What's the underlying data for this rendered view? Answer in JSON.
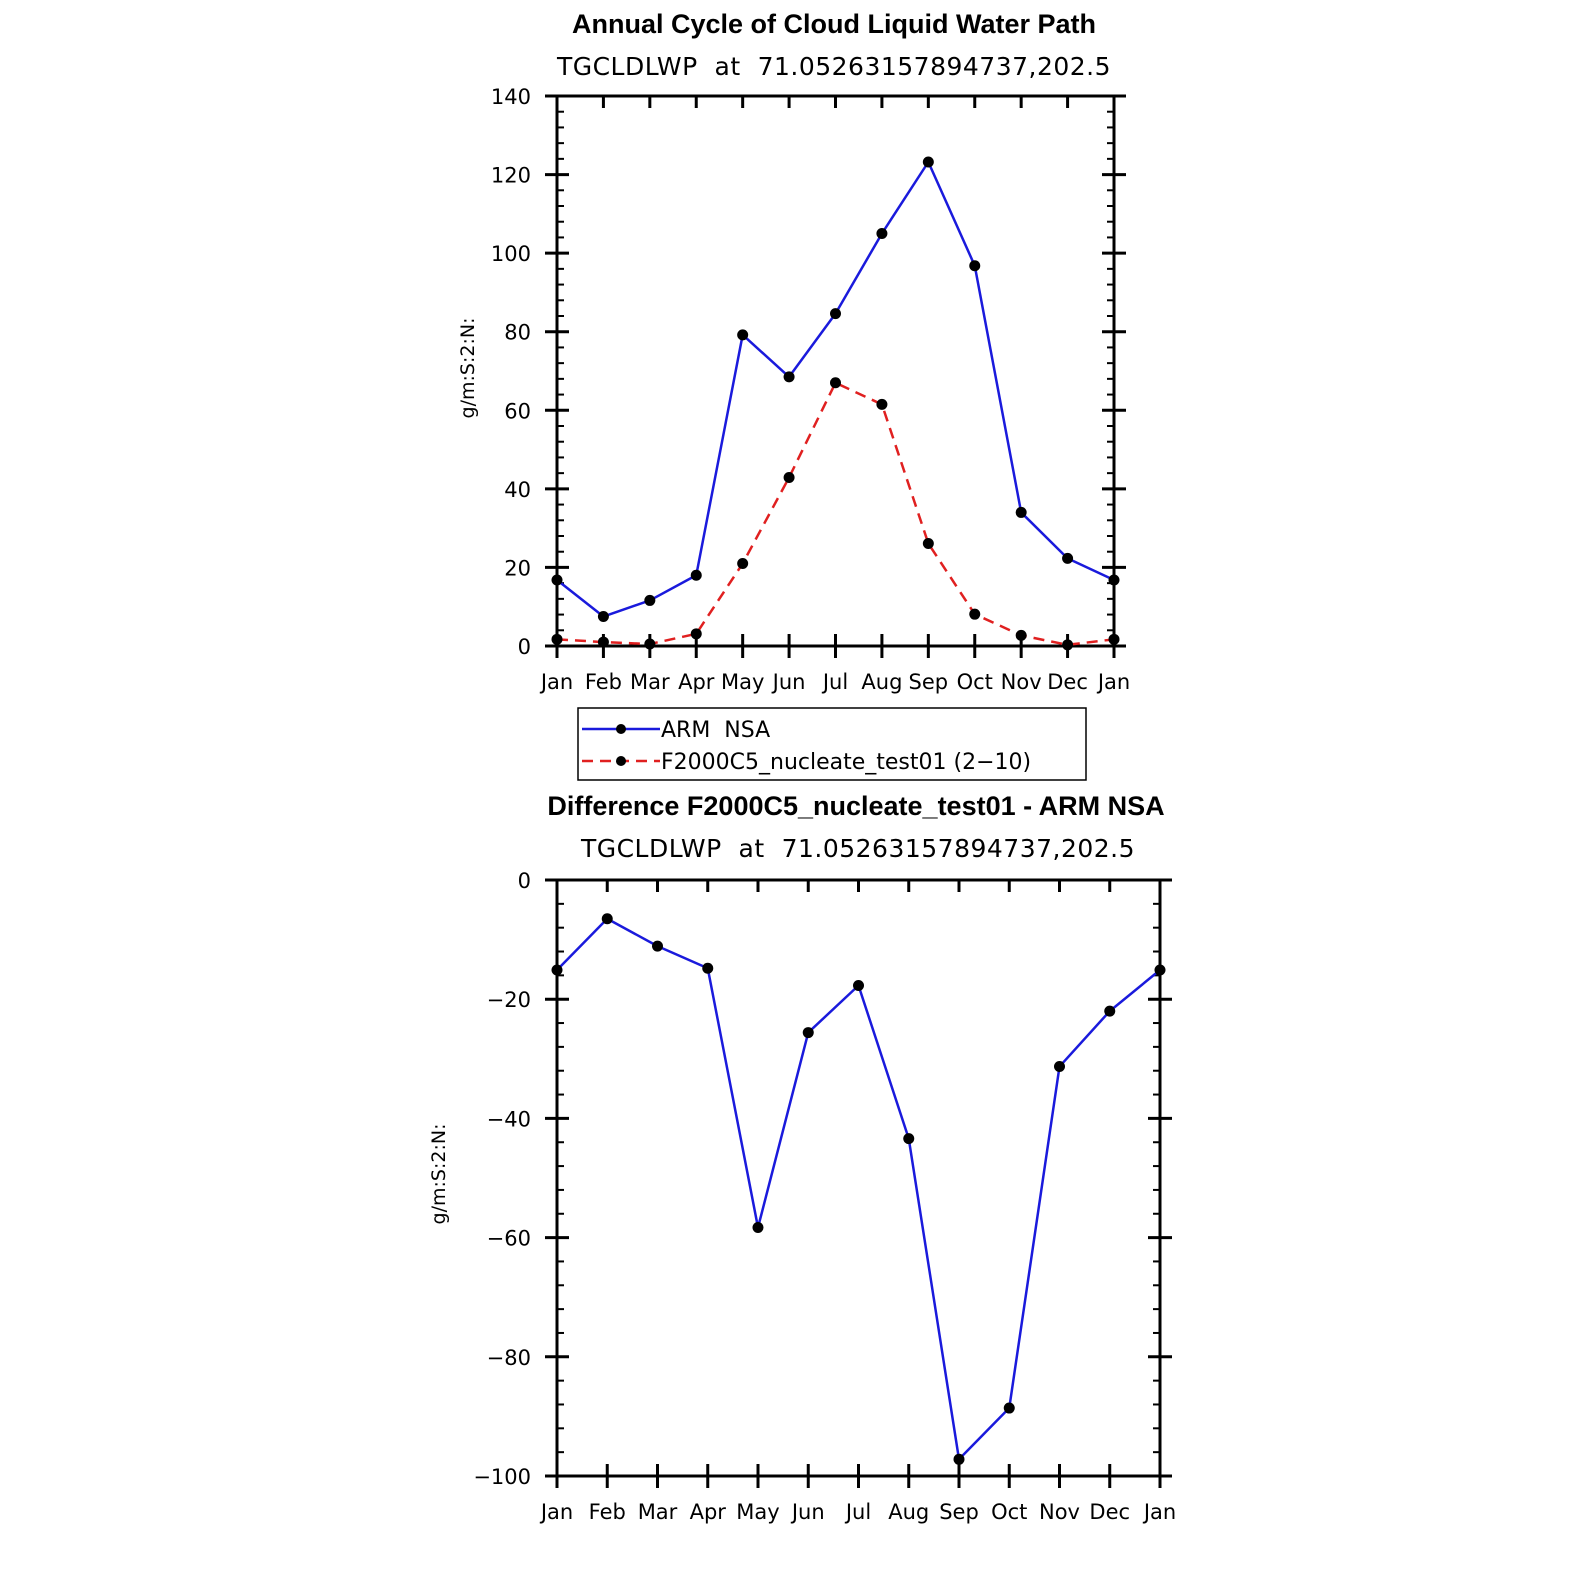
{
  "chart_data": [
    {
      "type": "line",
      "title": "Annual Cycle of Cloud Liquid Water Path",
      "subtitle": "TGCLDLWP  at  71.05263157894737,202.5",
      "ylabel": "g/m:S:2:N:",
      "categories": [
        "Jan",
        "Feb",
        "Mar",
        "Apr",
        "May",
        "Jun",
        "Jul",
        "Aug",
        "Sep",
        "Oct",
        "Nov",
        "Dec",
        "Jan"
      ],
      "ylim": [
        0,
        140
      ],
      "yticks": [
        "0",
        "20",
        "40",
        "60",
        "80",
        "100",
        "120",
        "140"
      ],
      "series": [
        {
          "name": "ARM  NSA",
          "color": "#1a1adc",
          "dash": "solid",
          "values": [
            16.8,
            7.5,
            11.6,
            18.0,
            79.2,
            68.5,
            84.6,
            105.0,
            123.2,
            96.8,
            34.0,
            22.3,
            16.8
          ]
        },
        {
          "name": "F2000C5_nucleate_test01 (2−10)",
          "color": "#e02020",
          "dash": "dashed",
          "values": [
            1.7,
            1.0,
            0.5,
            3.1,
            21.0,
            42.9,
            67.0,
            61.5,
            26.1,
            8.1,
            2.7,
            0.3,
            1.7
          ]
        }
      ],
      "legend_position": "below"
    },
    {
      "type": "line",
      "title": "Difference F2000C5_nucleate_test01 - ARM NSA",
      "subtitle": "TGCLDLWP  at  71.05263157894737,202.5",
      "ylabel": "g/m:S:2:N:",
      "categories": [
        "Jan",
        "Feb",
        "Mar",
        "Apr",
        "May",
        "Jun",
        "Jul",
        "Aug",
        "Sep",
        "Oct",
        "Nov",
        "Dec",
        "Jan"
      ],
      "ylim": [
        -100,
        0
      ],
      "yticks": [
        "−100",
        "−80",
        "−60",
        "−40",
        "−20",
        "0"
      ],
      "series": [
        {
          "color": "#1a1adc",
          "dash": "solid",
          "values": [
            -15.1,
            -6.5,
            -11.1,
            -14.8,
            -58.3,
            -25.6,
            -17.7,
            -43.4,
            -97.2,
            -88.6,
            -31.3,
            -22.0,
            -15.1
          ]
        }
      ]
    }
  ]
}
